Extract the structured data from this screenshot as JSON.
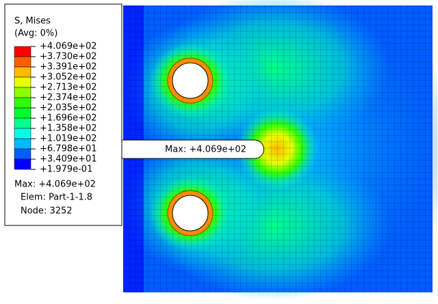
{
  "legend": {
    "title": "S, Mises",
    "subtitle": "(Avg: 0%)",
    "labels": [
      "+4.069e+02",
      "+3.730e+02",
      "+3.391e+02",
      "+3.052e+02",
      "+2.713e+02",
      "+2.374e+02",
      "+2.035e+02",
      "+1.696e+02",
      "+1.358e+02",
      "+1.019e+02",
      "+6.798e+01",
      "+3.409e+01",
      "+1.979e-01"
    ],
    "colors": [
      "#ff0000",
      "#ff5d00",
      "#ffb900",
      "#e8ff00",
      "#8bff00",
      "#2eff00",
      "#00ff2e",
      "#00ff8b",
      "#00ffe8",
      "#00b9ff",
      "#005dff",
      "#0000ff"
    ]
  },
  "info": {
    "max": "Max: +4.069e+02",
    "elem": "Elem: Part-1-1.8",
    "node": "Node: 3252"
  },
  "annotation": "Max: +4.069e+02"
}
